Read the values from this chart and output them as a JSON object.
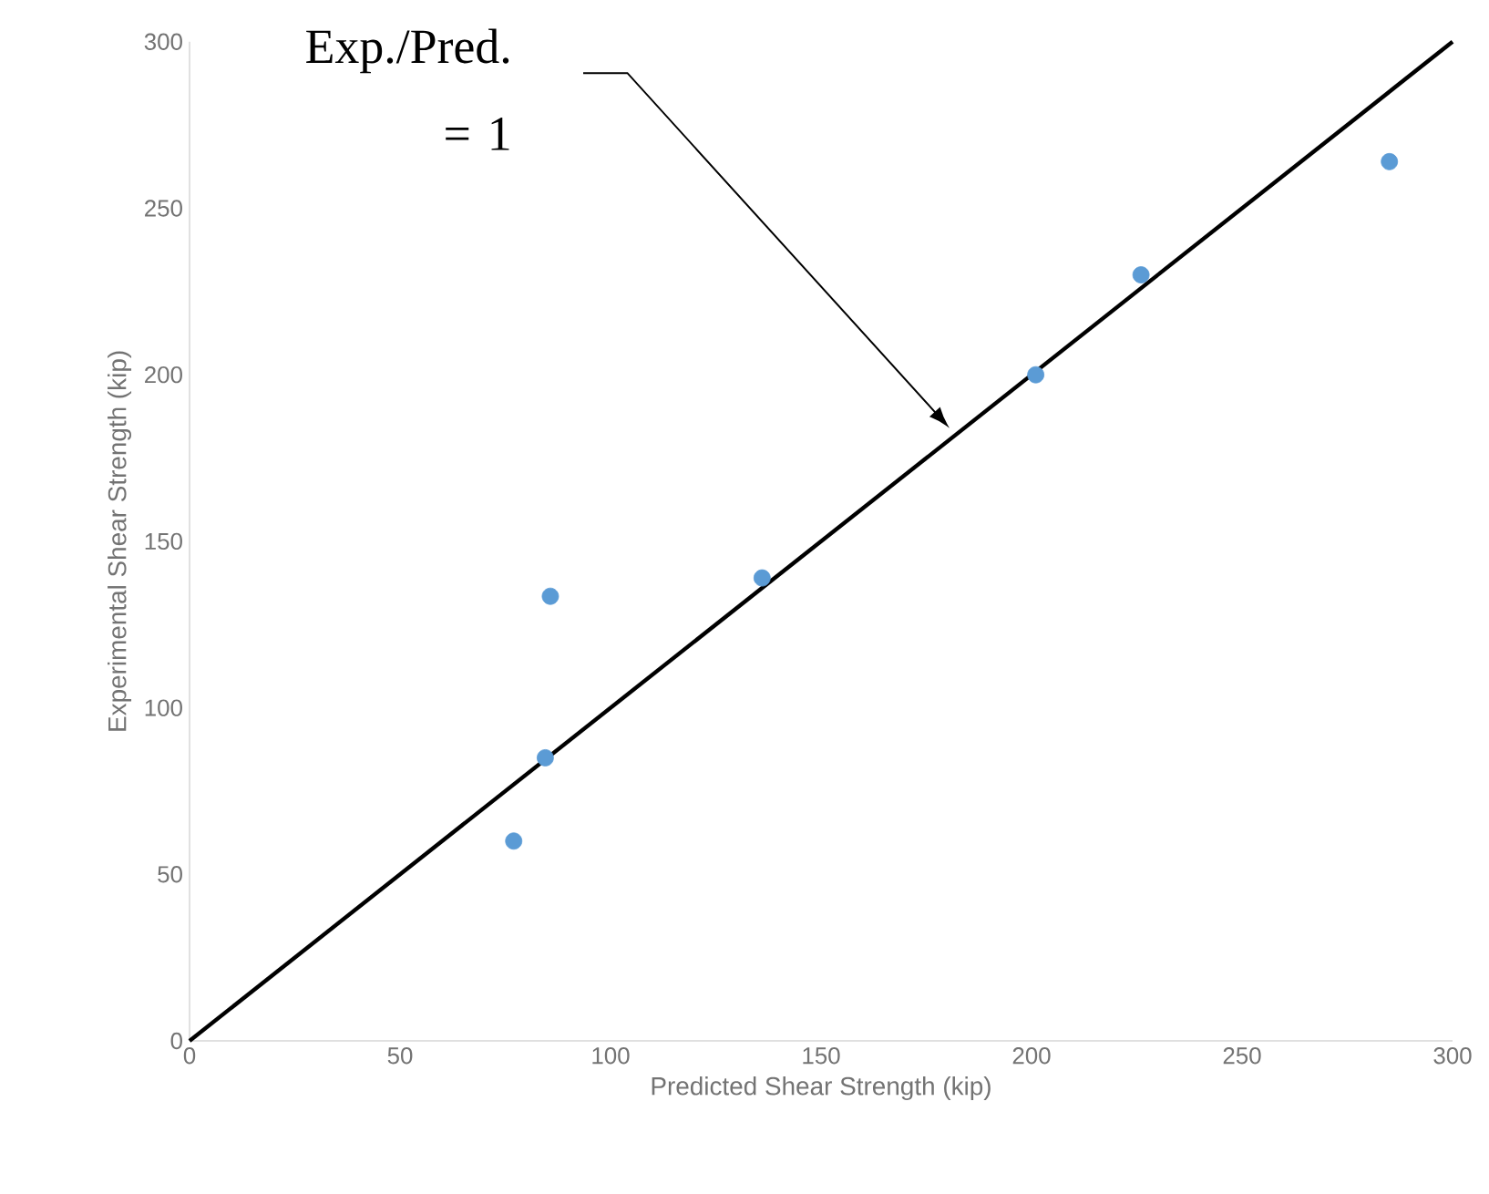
{
  "chart_data": {
    "type": "scatter",
    "xlabel": "Predicted Shear Strength (kip)",
    "ylabel": "Experimental Shear Strength (kip)",
    "series": [
      {
        "marker": "circle",
        "color": "#5b9bd5",
        "x": [
          77,
          84.5,
          85.7,
          136,
          201,
          226,
          285
        ],
        "values": [
          60,
          85,
          133.5,
          139,
          200,
          230,
          264
        ]
      },
      {
        "type": "line",
        "marker": "none",
        "color": "#000000",
        "x": [
          0,
          300
        ],
        "values": [
          0,
          300
        ]
      }
    ],
    "xlim": [
      0,
      300
    ],
    "ylim": [
      0,
      300
    ],
    "xticks": [
      0,
      50,
      100,
      150,
      200,
      250,
      300
    ],
    "yticks": [
      0,
      50,
      100,
      150,
      200,
      250,
      300
    ],
    "grid": false,
    "annotations": [
      "Exp./Pred. = 1"
    ]
  }
}
